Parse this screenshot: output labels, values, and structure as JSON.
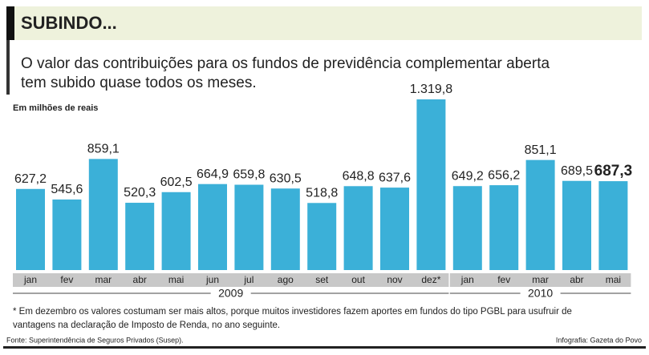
{
  "chart_data": {
    "type": "bar",
    "title": "SUBINDO...",
    "subtitle": [
      "O valor das contribuições para os fundos de previdência complementar aberta",
      "tem subido quase todos os meses."
    ],
    "unit_label": "Em milhões de reais",
    "color": "#3bb0d8",
    "groups": [
      {
        "name": "2009",
        "categories": [
          "jan",
          "fev",
          "mar",
          "abr",
          "mai",
          "jun",
          "jul",
          "ago",
          "set",
          "out",
          "nov",
          "dez*"
        ],
        "values": [
          627.2,
          545.6,
          859.1,
          520.3,
          602.5,
          664.9,
          659.8,
          630.5,
          518.8,
          648.8,
          637.6,
          1319.8
        ],
        "value_labels": [
          "627,2",
          "545,6",
          "859,1",
          "520,3",
          "602,5",
          "664,9",
          "659,8",
          "630,5",
          "518,8",
          "648,8",
          "637,6",
          "1.319,8"
        ]
      },
      {
        "name": "2010",
        "categories": [
          "jan",
          "fev",
          "mar",
          "abr",
          "mai"
        ],
        "values": [
          649.2,
          656.2,
          851.1,
          689.5,
          687.3
        ],
        "value_labels": [
          "649,2",
          "656,2",
          "851,1",
          "689,5",
          "687,3"
        ]
      }
    ],
    "footnote": [
      "* Em dezembro os valores costumam ser mais altos, porque muitos investidores fazem aportes em fundos do tipo PGBL para usufruir de",
      "vantagens na declaração de Imposto de Renda, no ano seguinte."
    ],
    "source": "Fonte: Superintendência de Seguros Privados (Susep).",
    "credit": "Infografia: Gazeta do Povo"
  }
}
